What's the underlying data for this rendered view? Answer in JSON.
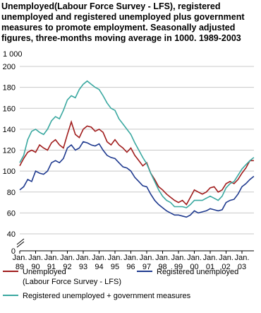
{
  "chart_data": {
    "type": "line",
    "title": "Unemployed(Labour Force Survey - LFS), registered unemployed and registered unemployed plus government measures to promote employment. Seasonally adjusted figures, three-months moving average in 1000. 1989-2003",
    "y_label": "1 000",
    "x": [
      "1989-01",
      "1989-04",
      "1989-07",
      "1989-10",
      "1990-01",
      "1990-04",
      "1990-07",
      "1990-10",
      "1991-01",
      "1991-04",
      "1991-07",
      "1991-10",
      "1992-01",
      "1992-04",
      "1992-07",
      "1992-10",
      "1993-01",
      "1993-04",
      "1993-07",
      "1993-10",
      "1994-01",
      "1994-04",
      "1994-07",
      "1994-10",
      "1995-01",
      "1995-04",
      "1995-07",
      "1995-10",
      "1996-01",
      "1996-04",
      "1996-07",
      "1996-10",
      "1997-01",
      "1997-04",
      "1997-07",
      "1997-10",
      "1998-01",
      "1998-04",
      "1998-07",
      "1998-10",
      "1999-01",
      "1999-04",
      "1999-07",
      "1999-10",
      "2000-01",
      "2000-04",
      "2000-07",
      "2000-10",
      "2001-01",
      "2001-04",
      "2001-07",
      "2001-10",
      "2002-01",
      "2002-04",
      "2002-07",
      "2002-10",
      "2003-01",
      "2003-04",
      "2003-07",
      "2003-10"
    ],
    "xticks": [
      {
        "value": "1989-01",
        "label": "Jan. 89"
      },
      {
        "value": "1990-01",
        "label": "Jan. 90"
      },
      {
        "value": "1991-01",
        "label": "Jan. 91"
      },
      {
        "value": "1992-01",
        "label": "Jan. 92"
      },
      {
        "value": "1993-01",
        "label": "Jan. 93"
      },
      {
        "value": "1994-01",
        "label": "Jan. 94"
      },
      {
        "value": "1995-01",
        "label": "Jan. 95"
      },
      {
        "value": "1996-01",
        "label": "Jan. 96"
      },
      {
        "value": "1997-01",
        "label": "Jan. 97"
      },
      {
        "value": "1998-01",
        "label": "Jan. 98"
      },
      {
        "value": "1999-01",
        "label": "Jan. 99"
      },
      {
        "value": "2000-01",
        "label": "Jan. 00"
      },
      {
        "value": "2001-01",
        "label": "Jan. 01"
      },
      {
        "value": "2002-01",
        "label": "Jan. 02"
      },
      {
        "value": "2003-01",
        "label": "Jan. 03"
      }
    ],
    "ylim": [
      0,
      200
    ],
    "yticks": [
      0,
      40,
      60,
      80,
      100,
      120,
      140,
      160,
      180,
      200
    ],
    "axis_break": [
      0,
      40
    ],
    "grid": true,
    "series": [
      {
        "name": "Unemployed (Labour Force Survey - LFS)",
        "color": "#a01c1c",
        "values": [
          105,
          112,
          118,
          120,
          118,
          125,
          122,
          120,
          127,
          130,
          125,
          122,
          135,
          147,
          135,
          132,
          140,
          143,
          142,
          138,
          140,
          137,
          128,
          125,
          130,
          125,
          122,
          118,
          122,
          115,
          110,
          105,
          108,
          98,
          92,
          85,
          82,
          78,
          75,
          72,
          70,
          72,
          68,
          75,
          82,
          80,
          78,
          80,
          84,
          85,
          80,
          82,
          88,
          90,
          88,
          92,
          98,
          103,
          110,
          110
        ]
      },
      {
        "name": "Registered unemployed",
        "color": "#1f3a8f",
        "values": [
          82,
          85,
          92,
          90,
          100,
          98,
          97,
          100,
          108,
          110,
          108,
          112,
          122,
          125,
          120,
          122,
          128,
          127,
          125,
          124,
          126,
          120,
          115,
          113,
          112,
          108,
          104,
          103,
          100,
          94,
          90,
          86,
          85,
          78,
          72,
          68,
          65,
          62,
          60,
          58,
          58,
          57,
          56,
          58,
          62,
          60,
          61,
          62,
          64,
          63,
          62,
          63,
          70,
          72,
          73,
          78,
          85,
          88,
          92,
          95
        ]
      },
      {
        "name": "Registered unemployed + government measures",
        "color": "#3aa8a0",
        "values": [
          108,
          115,
          130,
          138,
          140,
          137,
          135,
          140,
          148,
          152,
          150,
          158,
          168,
          172,
          170,
          178,
          183,
          186,
          183,
          180,
          178,
          172,
          165,
          160,
          158,
          150,
          145,
          140,
          135,
          127,
          120,
          113,
          107,
          98,
          90,
          82,
          76,
          72,
          70,
          66,
          66,
          66,
          65,
          68,
          72,
          72,
          72,
          74,
          76,
          74,
          72,
          76,
          84,
          88,
          90,
          96,
          102,
          106,
          110,
          113
        ]
      }
    ]
  }
}
